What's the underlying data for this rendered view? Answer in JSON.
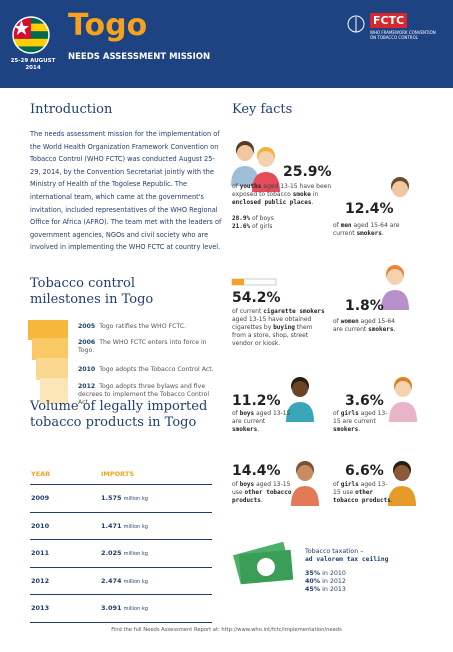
{
  "header": {
    "title": "Togo",
    "subtitle": "NEEDS ASSESSMENT MISSION",
    "date": [
      "25-29 AUGUST",
      "2014"
    ],
    "logo": "FCTC",
    "logo_text": [
      "WHO FRAMEWORK CONVENTION",
      "ON TOBACCO CONTROL"
    ]
  },
  "introduction": {
    "title": "Introduction",
    "text": "The needs assessment mission for the implementation of the World Health Organization Framework Convention on Tobacco Control (WHO FCTC) was conducted August 25-29, 2014, by the Convention Secretariat jointly with the Ministry of Health of the Togolese Republic. The international team, which came at the government's invitation, included representatives of the WHO Regional Office for Africa (AFRO). The team met with the leaders of government agencies, NGOs and civil society who are involved in implementing the WHO FCTC at country level."
  },
  "milestones": {
    "title": "Tobacco control milestones in Togo",
    "items": [
      {
        "year": "2005",
        "text": "Togo ratifies the WHO FCTC."
      },
      {
        "year": "2006",
        "text": "The WHO FCTC enters into force in Togo."
      },
      {
        "year": "2010",
        "text": "Togo adopts the Tobacco Control Act."
      },
      {
        "year": "2012",
        "text": "Togo adopts three bylaws and five decrees to implement the Tobacco Control Act."
      }
    ]
  },
  "imports": {
    "title": "Volume of legally imported tobacco products in Togo",
    "columns": [
      "YEAR",
      "IMPORTS"
    ],
    "rows": [
      [
        "2009",
        "1.575",
        "million kg"
      ],
      [
        "2010",
        "1.471",
        "million kg"
      ],
      [
        "2011",
        "2.025",
        "million kg"
      ],
      [
        "2012",
        "2.474",
        "million kg"
      ],
      [
        "2013",
        "3.091",
        "million kg"
      ]
    ]
  },
  "key_facts": {
    "title": "Key facts",
    "facts": [
      {
        "value": "25.9%",
        "parts": [
          "of ",
          "youths",
          " aged 13-15 have been exposed to tobacco ",
          "smoke",
          " in ",
          "enclosed public places",
          "."
        ],
        "details": [
          [
            "28.9%",
            " of boys"
          ],
          [
            "21.6%",
            " of girls"
          ]
        ]
      },
      {
        "value": "12.4%",
        "parts": [
          "of ",
          "men",
          " aged 15-64 are current ",
          "smokers",
          "."
        ]
      },
      {
        "value": "54.2%",
        "parts": [
          "of current ",
          "cigarette smokers",
          " aged 13-15 have obtained cigarettes by ",
          "buying",
          " them from a store, shop, street vendor or kiosk."
        ]
      },
      {
        "value": "1.8%",
        "parts": [
          "of ",
          "women",
          " aged 15-64 are current ",
          "smokers",
          "."
        ]
      },
      {
        "value": "11.2%",
        "parts": [
          "of ",
          "boys",
          " aged 13-15 are current ",
          "smokers",
          "."
        ]
      },
      {
        "value": "3.6%",
        "parts": [
          "of ",
          "girls",
          " aged 13-15 are current ",
          "smokers",
          "."
        ]
      },
      {
        "value": "14.4%",
        "parts": [
          "of ",
          "boys",
          " aged 13-15 use ",
          "other tobacco products",
          "."
        ]
      },
      {
        "value": "6.6%",
        "parts": [
          "of ",
          "girls",
          " aged 13-15 use ",
          "other tobacco products",
          "."
        ]
      }
    ]
  },
  "taxation": {
    "title": "Tobacco taxation –",
    "subtitle": "ad valorem tax ceiling",
    "rates": [
      [
        "35%",
        " in 2010"
      ],
      [
        "40%",
        " in 2012"
      ],
      [
        "45%",
        " in 2013"
      ]
    ]
  },
  "footer": "Find the full Needs Assessment Report at: http://www.who.int/fctc/implementation/needs"
}
